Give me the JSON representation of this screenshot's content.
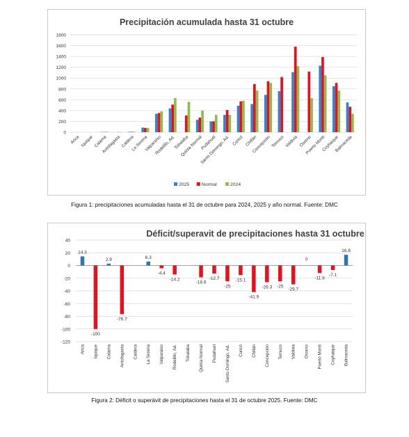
{
  "charts": [
    {
      "type": "bar",
      "title": "Precipitación acumulada hasta 31 octubre",
      "categories": [
        "Arica",
        "Iquique",
        "Calama",
        "Antofagasta",
        "Caldera",
        "La Serena",
        "Valparaíso",
        "Rodelillo, Ad.",
        "Tobalaba",
        "Quinta Normal",
        "Pudahuel",
        "Santo Domingo, Ad.",
        "Curicó",
        "Chillán",
        "Concepción",
        "Temuco",
        "Valdivia",
        "Osorno",
        "Puerto Montt",
        "Coyhaique",
        "Balmaceda"
      ],
      "ylim": [
        0,
        1800
      ],
      "yticks": [
        0,
        200,
        400,
        600,
        800,
        1000,
        1200,
        1400,
        1600,
        1800
      ],
      "legend_position": "bottom",
      "series": [
        {
          "name": "2025",
          "color": "#2E86D1",
          "values": [
            0,
            0,
            5,
            0,
            8,
            85,
            340,
            440,
            null,
            230,
            200,
            320,
            490,
            520,
            690,
            760,
            1110,
            null,
            1230,
            850,
            550
          ]
        },
        {
          "name": "Normal",
          "color": "#E8101C",
          "values": [
            0,
            0,
            5,
            3,
            7,
            80,
            355,
            510,
            310,
            270,
            200,
            410,
            570,
            890,
            940,
            1020,
            1580,
            1120,
            1390,
            910,
            470
          ]
        },
        {
          "name": "2024",
          "color": "#8BBF4A",
          "values": [
            0,
            0,
            8,
            5,
            10,
            80,
            385,
            630,
            560,
            400,
            320,
            320,
            580,
            770,
            910,
            0,
            1220,
            630,
            1050,
            770,
            340
          ]
        }
      ]
    },
    {
      "type": "bar",
      "title": "Déficit/superavit de precipitaciones hasta 31 octubre",
      "categories": [
        "Arica",
        "Iquique",
        "Calama",
        "Antofagasta",
        "Caldera",
        "La Serena",
        "Valparaiso",
        "Rodelillo, Ad.",
        "Tobalaba",
        "Quinta Normal",
        "Pudahuel",
        "Santo Domingo, Ad.",
        "Curicó",
        "Chillán",
        "Concepción",
        "Temuco",
        "Valdivia",
        "Osorno",
        "Puerto Montt",
        "Coyhaique",
        "Balmaceda"
      ],
      "ylim": [
        -120,
        40
      ],
      "yticks": [
        40,
        20,
        0,
        -20,
        -40,
        -60,
        -80,
        -100,
        -120
      ],
      "positive_color": "#2E75B6",
      "negative_color": "#E8101C",
      "values": [
        14.3,
        -100,
        2.9,
        -76.7,
        null,
        6.3,
        -4.4,
        -14.2,
        null,
        -18.6,
        -12.7,
        -25,
        -15.1,
        -41.9,
        -26.3,
        -25,
        -29.7,
        0,
        -11.9,
        -7.1,
        16.8
      ],
      "data_labels": [
        "14.3",
        "-100",
        "2.9",
        "-76.7",
        "",
        "6.3",
        "-4.4",
        "-14.2",
        "",
        "-18.6",
        "-12.7",
        "-25",
        "-15.1",
        "-41.9",
        "-26.3",
        "-25",
        "-29.7",
        "0",
        "-11.9",
        "-7.1",
        "16.8"
      ]
    }
  ],
  "captions": {
    "figure1": "Figura 1: precipitaciones acumuladas hasta el 31 de octubre para 2024, 2025 y año normal. Fuente: DMC",
    "figure2": "Figura 2: Déficit o superávit de precipitaciones hasta el 31 de octubre 2025. Fuente: DMC"
  }
}
